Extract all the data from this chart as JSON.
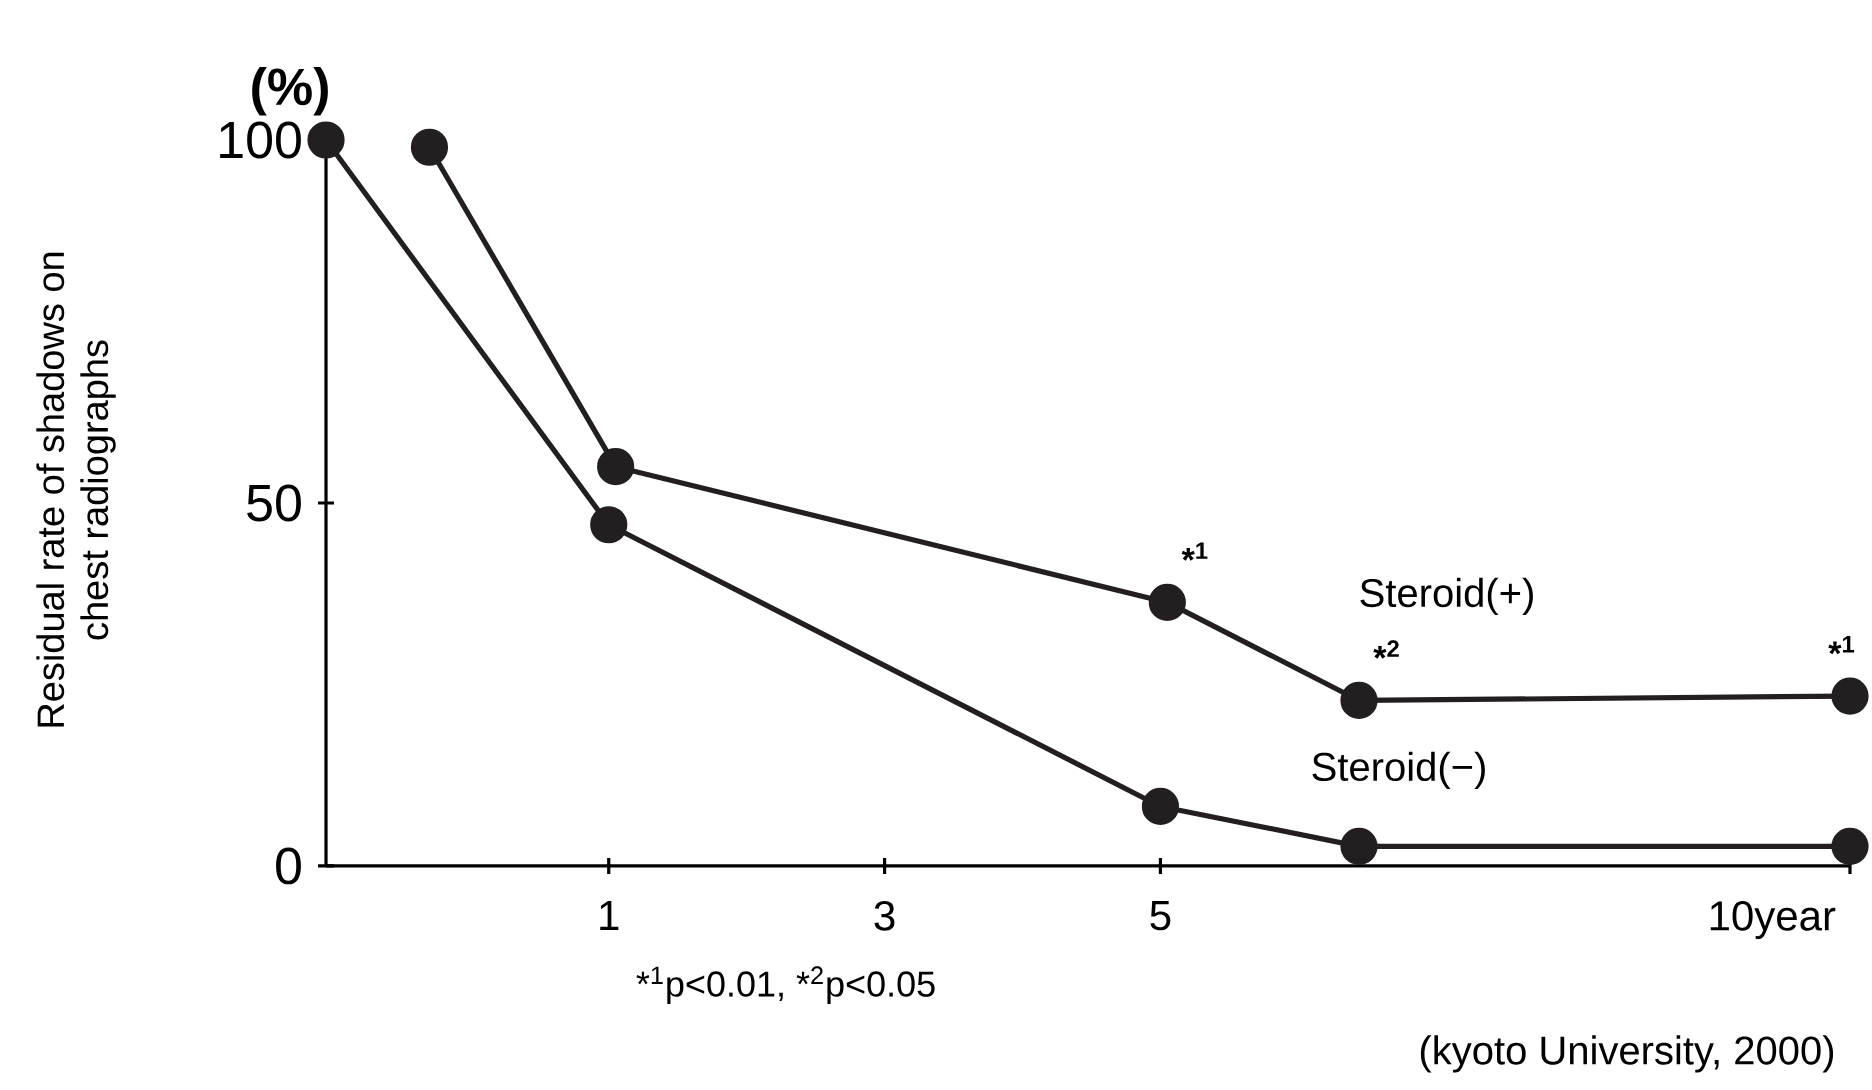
{
  "chart_data": {
    "type": "line",
    "ylabel": "Residual rate of shadows on chest radiographs",
    "xlim": [
      -1.05,
      10
    ],
    "ylim": [
      0,
      100
    ],
    "xticks": [
      1,
      3,
      5,
      {
        "value": 10,
        "label": "10year"
      }
    ],
    "yticks": [
      0,
      50,
      100
    ],
    "marker": "circle",
    "line_style": "solid",
    "grid": false,
    "legend": false,
    "series": [
      {
        "name": "Steroid(+)",
        "color": "#231f20",
        "x": [
          -0.3,
          1.05,
          5.05,
          6.44,
          10
        ],
        "values": [
          99,
          55,
          36.3,
          22.8,
          23.4
        ]
      },
      {
        "name": "Steroid(−)",
        "color": "#231f20",
        "x": [
          -1.05,
          1.0,
          5.0,
          6.44,
          10
        ],
        "values": [
          100,
          47,
          8.2,
          2.7,
          2.7
        ]
      }
    ],
    "annotations": [
      {
        "text": "*$^{1}$",
        "x": 5.05,
        "y": 36.3
      },
      {
        "text": "*$^{2}$",
        "x": 6.44,
        "y": 22.8
      },
      {
        "text": "*$^{1}$",
        "x": 10,
        "y": 23.4
      },
      "(%)",
      "*$^{1}$p<0.01, *$^{2}$p<0.05",
      "(kyoto University, 2000)"
    ]
  }
}
